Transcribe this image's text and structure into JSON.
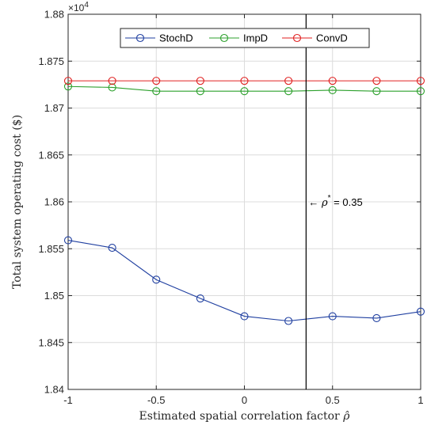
{
  "chart_data": {
    "type": "line",
    "x": [
      -1,
      -0.75,
      -0.5,
      -0.25,
      0,
      0.25,
      0.5,
      0.75,
      1
    ],
    "xlim": [
      -1,
      1
    ],
    "ylim": [
      1.84,
      1.88
    ],
    "xticks": [
      "-1",
      "-0.5",
      "0",
      "0.5",
      "1"
    ],
    "xtick_values": [
      -1,
      -0.5,
      0,
      0.5,
      1
    ],
    "yticks": [
      "1.84",
      "1.845",
      "1.85",
      "1.855",
      "1.86",
      "1.865",
      "1.87",
      "1.875",
      "1.88"
    ],
    "ytick_values": [
      1.84,
      1.845,
      1.85,
      1.855,
      1.86,
      1.865,
      1.87,
      1.875,
      1.88
    ],
    "y_exponent_label": "×10",
    "y_exponent_power": "4",
    "xlabel_prefix": "Estimated spatial correlation factor ",
    "xlabel_symbol": "ρ̂",
    "ylabel": "Total system operating cost ($)",
    "grid": true,
    "legend_position": "top",
    "series": [
      {
        "name": "StochD",
        "color": "#1f3fa0",
        "values": [
          1.8559,
          1.8551,
          1.8517,
          1.8497,
          1.8478,
          1.8473,
          1.8478,
          1.8476,
          1.8483
        ]
      },
      {
        "name": "ImpD",
        "color": "#2ca02c",
        "values": [
          1.8723,
          1.8722,
          1.8718,
          1.8718,
          1.8718,
          1.8718,
          1.8719,
          1.8718,
          1.8718
        ]
      },
      {
        "name": "ConvD",
        "color": "#e02020",
        "values": [
          1.8729,
          1.8729,
          1.8729,
          1.8729,
          1.8729,
          1.8729,
          1.8729,
          1.8729,
          1.8729
        ]
      }
    ],
    "annotation": {
      "x": 0.35,
      "arrow": "←",
      "symbol": "ρ",
      "superscript": "*",
      "text": " = 0.35",
      "y": 1.86
    }
  }
}
